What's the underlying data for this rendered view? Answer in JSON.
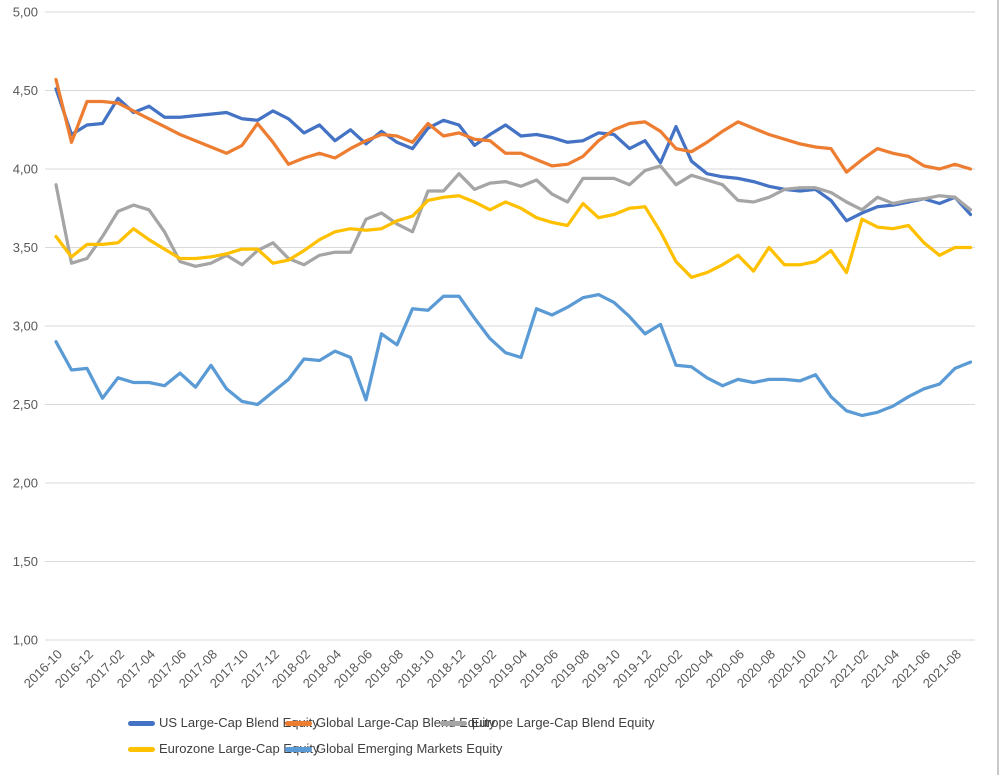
{
  "chart_data": {
    "type": "line",
    "title": "",
    "x": [
      "2016-10",
      "2016-11",
      "2016-12",
      "2017-01",
      "2017-02",
      "2017-03",
      "2017-04",
      "2017-05",
      "2017-06",
      "2017-07",
      "2017-08",
      "2017-09",
      "2017-10",
      "2017-11",
      "2017-12",
      "2018-01",
      "2018-02",
      "2018-03",
      "2018-04",
      "2018-05",
      "2018-06",
      "2018-07",
      "2018-08",
      "2018-09",
      "2018-10",
      "2018-11",
      "2018-12",
      "2019-01",
      "2019-02",
      "2019-03",
      "2019-04",
      "2019-05",
      "2019-06",
      "2019-07",
      "2019-08",
      "2019-09",
      "2019-10",
      "2019-11",
      "2019-12",
      "2020-01",
      "2020-02",
      "2020-03",
      "2020-04",
      "2020-05",
      "2020-06",
      "2020-07",
      "2020-08",
      "2020-09",
      "2020-10",
      "2020-11",
      "2020-12",
      "2021-01",
      "2021-02",
      "2021-03",
      "2021-04",
      "2021-05",
      "2021-06",
      "2021-07",
      "2021-08",
      "2021-09"
    ],
    "x_tick_every": 2,
    "x_tick_labels": [
      "2016-10",
      "2016-12",
      "2017-02",
      "2017-04",
      "2017-06",
      "2017-08",
      "2017-10",
      "2017-12",
      "2018-02",
      "2018-04",
      "2018-06",
      "2018-08",
      "2018-10",
      "2018-12",
      "2019-02",
      "2019-04",
      "2019-06",
      "2019-08",
      "2019-10",
      "2019-12",
      "2020-02",
      "2020-04",
      "2020-06",
      "2020-08",
      "2020-10",
      "2020-12",
      "2021-02",
      "2021-04",
      "2021-06",
      "2021-08"
    ],
    "ylim": [
      1.0,
      5.0
    ],
    "y_step": 0.5,
    "y_tick_labels": [
      "5,00",
      "4,50",
      "4,00",
      "3,50",
      "3,00",
      "2,50",
      "2,00",
      "1,50",
      "1,00"
    ],
    "decimal_separator": ",",
    "grid": "horizontal",
    "gridline_color": "#D9D9D9",
    "axis_text_color": "#595959",
    "legend_position": "bottom",
    "legend_text_color": "#404040",
    "series": [
      {
        "id": "us",
        "name": "US Large-Cap Blend Equity",
        "color": "#4472C4",
        "values": [
          4.51,
          4.22,
          4.28,
          4.29,
          4.45,
          4.36,
          4.4,
          4.33,
          4.33,
          4.34,
          4.35,
          4.36,
          4.32,
          4.31,
          4.37,
          4.32,
          4.23,
          4.28,
          4.18,
          4.25,
          4.16,
          4.24,
          4.17,
          4.13,
          4.26,
          4.31,
          4.28,
          4.15,
          4.22,
          4.28,
          4.21,
          4.22,
          4.2,
          4.17,
          4.18,
          4.23,
          4.22,
          4.13,
          4.18,
          4.04,
          4.27,
          4.05,
          3.97,
          3.95,
          3.94,
          3.92,
          3.89,
          3.87,
          3.86,
          3.87,
          3.8,
          3.67,
          3.72,
          3.76,
          3.77,
          3.79,
          3.81,
          3.78,
          3.82,
          3.71
        ]
      },
      {
        "id": "global",
        "name": "Global Large-Cap Blend Equity",
        "color": "#ED7D31",
        "values": [
          4.57,
          4.17,
          4.43,
          4.43,
          4.42,
          4.37,
          4.32,
          4.27,
          4.22,
          4.18,
          4.14,
          4.1,
          4.15,
          4.29,
          4.17,
          4.03,
          4.07,
          4.1,
          4.07,
          4.13,
          4.18,
          4.22,
          4.21,
          4.17,
          4.29,
          4.21,
          4.23,
          4.19,
          4.18,
          4.1,
          4.1,
          4.06,
          4.02,
          4.03,
          4.08,
          4.18,
          4.25,
          4.29,
          4.3,
          4.24,
          4.13,
          4.11,
          4.17,
          4.24,
          4.3,
          4.26,
          4.22,
          4.19,
          4.16,
          4.14,
          4.13,
          3.98,
          4.06,
          4.13,
          4.1,
          4.08,
          4.02,
          4.0,
          4.03,
          4.0
        ]
      },
      {
        "id": "europe",
        "name": "Europe Large-Cap Blend Equity",
        "color": "#A5A5A5",
        "values": [
          3.9,
          3.4,
          3.43,
          3.57,
          3.73,
          3.77,
          3.74,
          3.6,
          3.41,
          3.38,
          3.4,
          3.45,
          3.39,
          3.48,
          3.53,
          3.43,
          3.39,
          3.45,
          3.47,
          3.47,
          3.68,
          3.72,
          3.65,
          3.6,
          3.86,
          3.86,
          3.97,
          3.87,
          3.91,
          3.92,
          3.89,
          3.93,
          3.84,
          3.79,
          3.94,
          3.94,
          3.94,
          3.9,
          3.99,
          4.02,
          3.9,
          3.96,
          3.93,
          3.9,
          3.8,
          3.79,
          3.82,
          3.87,
          3.88,
          3.88,
          3.85,
          3.79,
          3.74,
          3.82,
          3.78,
          3.8,
          3.81,
          3.83,
          3.82,
          3.74
        ]
      },
      {
        "id": "eurozone",
        "name": "Eurozone Large-Cap Equity",
        "color": "#FFC000",
        "values": [
          3.57,
          3.44,
          3.52,
          3.52,
          3.53,
          3.62,
          3.55,
          3.49,
          3.43,
          3.43,
          3.44,
          3.46,
          3.49,
          3.49,
          3.4,
          3.42,
          3.48,
          3.55,
          3.6,
          3.62,
          3.61,
          3.62,
          3.67,
          3.7,
          3.8,
          3.82,
          3.83,
          3.79,
          3.74,
          3.79,
          3.75,
          3.69,
          3.66,
          3.64,
          3.78,
          3.69,
          3.71,
          3.75,
          3.76,
          3.6,
          3.41,
          3.31,
          3.34,
          3.39,
          3.45,
          3.35,
          3.5,
          3.39,
          3.39,
          3.41,
          3.48,
          3.34,
          3.68,
          3.63,
          3.62,
          3.64,
          3.53,
          3.45,
          3.5,
          3.5
        ]
      },
      {
        "id": "em",
        "name": "Global Emerging Markets Equity",
        "color": "#5B9BD5",
        "values": [
          2.9,
          2.72,
          2.73,
          2.54,
          2.67,
          2.64,
          2.64,
          2.62,
          2.7,
          2.61,
          2.75,
          2.6,
          2.52,
          2.5,
          2.58,
          2.66,
          2.79,
          2.78,
          2.84,
          2.8,
          2.53,
          2.95,
          2.88,
          3.11,
          3.1,
          3.19,
          3.19,
          3.05,
          2.92,
          2.83,
          2.8,
          3.11,
          3.07,
          3.12,
          3.18,
          3.2,
          3.15,
          3.06,
          2.95,
          3.01,
          2.75,
          2.74,
          2.67,
          2.62,
          2.66,
          2.64,
          2.66,
          2.66,
          2.65,
          2.69,
          2.55,
          2.46,
          2.43,
          2.45,
          2.49,
          2.55,
          2.6,
          2.63,
          2.73,
          2.77
        ]
      }
    ]
  }
}
